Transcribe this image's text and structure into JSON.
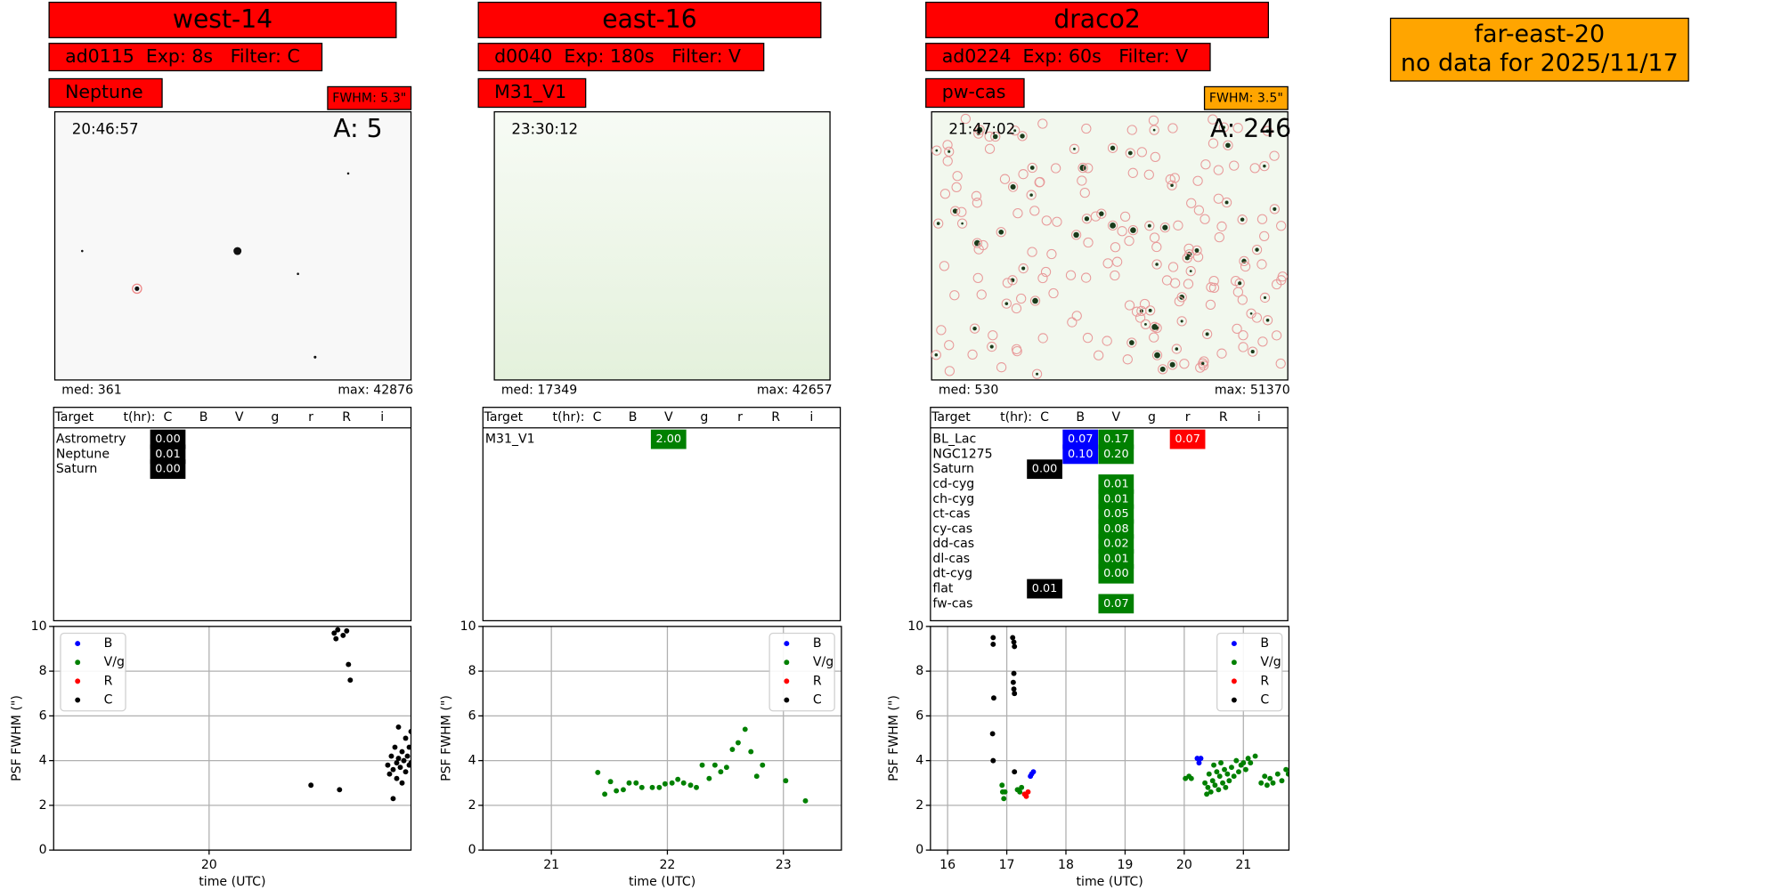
{
  "panels": [
    {
      "title": "west-14",
      "info": "ad0115  Exp: 8s   Filter: C",
      "target": "Neptune",
      "fwhm": "FWHM: 5.3\"",
      "fwhm_color": "#ff0000",
      "time": "20:46:57",
      "count": "A: 5",
      "median": "med: 361",
      "max": "max: 42876",
      "table": {
        "header": [
          "Target",
          "t(hr):"
        ],
        "columns": [
          "C",
          "B",
          "V",
          "g",
          "r",
          "R",
          "i"
        ],
        "rows": [
          {
            "target": "Astrometry",
            "cells": [
              "0.00",
              null,
              null,
              null,
              null,
              null,
              null
            ]
          },
          {
            "target": "Neptune",
            "cells": [
              "0.01",
              null,
              null,
              null,
              null,
              null,
              null
            ]
          },
          {
            "target": "Saturn",
            "cells": [
              "0.00",
              null,
              null,
              null,
              null,
              null,
              null
            ]
          }
        ]
      }
    },
    {
      "title": "east-16",
      "info": "d0040  Exp: 180s   Filter: V",
      "target": "M31_V1",
      "time": "23:30:12",
      "median": "med: 17349",
      "max": "max: 42657",
      "table": {
        "header": [
          "Target",
          "t(hr):"
        ],
        "columns": [
          "C",
          "B",
          "V",
          "g",
          "r",
          "R",
          "i"
        ],
        "rows": [
          {
            "target": "M31_V1",
            "cells": [
              null,
              null,
              "2.00",
              null,
              null,
              null,
              null
            ]
          }
        ]
      }
    },
    {
      "title": "draco2",
      "info": "ad0224  Exp: 60s   Filter: V",
      "target": "pw-cas",
      "fwhm": "FWHM: 3.5\"",
      "fwhm_color": "#ffa500",
      "time": "21:47:02",
      "count": "A: 246",
      "median": "med: 530",
      "max": "max: 51370",
      "table": {
        "header": [
          "Target",
          "t(hr):"
        ],
        "columns": [
          "C",
          "B",
          "V",
          "g",
          "r",
          "R",
          "i"
        ],
        "rows": [
          {
            "target": "BL_Lac",
            "cells": [
              null,
              "0.07",
              "0.17",
              null,
              "0.07",
              null,
              null
            ]
          },
          {
            "target": "NGC1275",
            "cells": [
              null,
              "0.10",
              "0.20",
              null,
              null,
              null,
              null
            ]
          },
          {
            "target": "Saturn",
            "cells": [
              "0.00",
              null,
              null,
              null,
              null,
              null,
              null
            ]
          },
          {
            "target": "cd-cyg",
            "cells": [
              null,
              null,
              "0.01",
              null,
              null,
              null,
              null
            ]
          },
          {
            "target": "ch-cyg",
            "cells": [
              null,
              null,
              "0.01",
              null,
              null,
              null,
              null
            ]
          },
          {
            "target": "ct-cas",
            "cells": [
              null,
              null,
              "0.05",
              null,
              null,
              null,
              null
            ]
          },
          {
            "target": "cy-cas",
            "cells": [
              null,
              null,
              "0.08",
              null,
              null,
              null,
              null
            ]
          },
          {
            "target": "dd-cas",
            "cells": [
              null,
              null,
              "0.02",
              null,
              null,
              null,
              null
            ]
          },
          {
            "target": "dl-cas",
            "cells": [
              null,
              null,
              "0.01",
              null,
              null,
              null,
              null
            ]
          },
          {
            "target": "dt-cyg",
            "cells": [
              null,
              null,
              "0.00",
              null,
              null,
              null,
              null
            ]
          },
          {
            "target": "flat",
            "cells": [
              "0.01",
              null,
              null,
              null,
              null,
              null,
              null
            ]
          },
          {
            "target": "fw-cas",
            "cells": [
              null,
              null,
              "0.07",
              null,
              null,
              null,
              null
            ]
          }
        ]
      }
    }
  ],
  "cell_colors": [
    "#000000",
    "#0000ff",
    "#008000",
    null,
    "#ff0000",
    null,
    null
  ],
  "title_color": "#ff0000",
  "chart_data": [
    {
      "type": "scatter",
      "xlabel": "time (UTC)",
      "ylabel": "PSF FWHM (\")",
      "xlim": [
        19.13,
        21.13
      ],
      "xticks": [
        20
      ],
      "ylim": [
        0,
        10
      ],
      "yticks": [
        0,
        2,
        4,
        6,
        8,
        10
      ],
      "grid": true,
      "legend": "upper left",
      "series": [
        {
          "name": "B",
          "color": "#0000ff",
          "x": [],
          "values": []
        },
        {
          "name": "V/g",
          "color": "#008000",
          "x": [],
          "values": []
        },
        {
          "name": "R",
          "color": "#ff0000",
          "x": [],
          "values": []
        },
        {
          "name": "C",
          "color": "#000000",
          "x": [
            20.57,
            20.73,
            20.7,
            20.72,
            20.75,
            20.77,
            20.71,
            20.78,
            20.79,
            21.0,
            21.01,
            21.02,
            21.03,
            21.03,
            21.04,
            21.05,
            21.05,
            21.06,
            21.06,
            21.07,
            21.08,
            21.08,
            21.09,
            21.1,
            21.1,
            21.11,
            21.12,
            21.12,
            21.13,
            21.13
          ],
          "values": [
            2.9,
            2.7,
            9.7,
            9.85,
            9.6,
            9.8,
            9.45,
            8.3,
            7.6,
            3.8,
            3.4,
            4.2,
            3.6,
            2.3,
            4.6,
            3.9,
            3.2,
            5.5,
            4.1,
            3.7,
            4.4,
            3.0,
            4.0,
            3.5,
            5.0,
            4.2,
            3.8,
            4.6,
            5.3,
            3.9
          ]
        }
      ]
    },
    {
      "type": "scatter",
      "xlabel": "time (UTC)",
      "ylabel": "PSF FWHM (\")",
      "xlim": [
        20.41,
        23.5
      ],
      "xticks": [
        21,
        22,
        23
      ],
      "ylim": [
        0,
        10
      ],
      "yticks": [
        0,
        2,
        4,
        6,
        8,
        10
      ],
      "grid": true,
      "legend": "upper right",
      "series": [
        {
          "name": "B",
          "color": "#0000ff",
          "x": [],
          "values": []
        },
        {
          "name": "V/g",
          "color": "#008000",
          "x": [
            21.4,
            21.46,
            21.51,
            21.56,
            21.62,
            21.67,
            21.73,
            21.78,
            21.87,
            21.93,
            21.98,
            22.04,
            22.09,
            22.14,
            22.2,
            22.25,
            22.3,
            22.36,
            22.41,
            22.46,
            22.51,
            22.56,
            22.61,
            22.67,
            22.72,
            22.77,
            22.82,
            23.02,
            23.19
          ],
          "values": [
            3.47,
            2.5,
            3.06,
            2.65,
            2.7,
            3.0,
            3.0,
            2.8,
            2.8,
            2.8,
            2.96,
            3.0,
            3.16,
            3.0,
            2.9,
            2.8,
            3.8,
            3.2,
            3.8,
            3.5,
            3.7,
            4.5,
            4.8,
            5.4,
            4.4,
            3.3,
            3.8,
            3.1,
            2.2
          ]
        },
        {
          "name": "R",
          "color": "#ff0000",
          "x": [],
          "values": []
        },
        {
          "name": "C",
          "color": "#000000",
          "x": [],
          "values": []
        }
      ]
    },
    {
      "type": "scatter",
      "xlabel": "time (UTC)",
      "ylabel": "PSF FWHM (\")",
      "xlim": [
        15.71,
        21.77
      ],
      "xticks": [
        16,
        17,
        18,
        19,
        20,
        21
      ],
      "ylim": [
        0,
        10
      ],
      "yticks": [
        0,
        2,
        4,
        6,
        8,
        10
      ],
      "grid": true,
      "legend": "upper right",
      "series": [
        {
          "name": "B",
          "color": "#0000ff",
          "x": [
            17.4,
            17.42,
            17.45,
            20.22,
            20.25,
            20.28
          ],
          "values": [
            3.3,
            3.4,
            3.5,
            4.1,
            3.9,
            4.1
          ]
        },
        {
          "name": "V/g",
          "color": "#008000",
          "x": [
            16.92,
            16.93,
            16.95,
            16.97,
            17.18,
            17.22,
            17.25,
            20.02,
            20.08,
            20.12,
            20.35,
            20.38,
            20.4,
            20.42,
            20.45,
            20.48,
            20.5,
            20.52,
            20.55,
            20.58,
            20.6,
            20.62,
            20.65,
            20.68,
            20.7,
            20.73,
            20.76,
            20.8,
            20.84,
            20.88,
            20.92,
            20.96,
            21.0,
            21.04,
            21.08,
            21.12,
            21.2,
            21.3,
            21.36,
            21.4,
            21.45,
            21.5,
            21.58,
            21.65,
            21.72,
            21.76
          ],
          "values": [
            2.9,
            2.6,
            2.3,
            2.6,
            2.7,
            2.6,
            2.8,
            3.2,
            3.3,
            3.2,
            3.0,
            2.5,
            2.8,
            3.4,
            2.6,
            3.1,
            3.8,
            2.9,
            3.5,
            2.7,
            3.3,
            3.9,
            3.0,
            3.6,
            2.8,
            3.4,
            3.1,
            3.7,
            3.3,
            4.0,
            3.5,
            3.8,
            3.9,
            3.6,
            4.1,
            3.9,
            4.2,
            3.0,
            3.3,
            2.9,
            3.2,
            3.0,
            3.4,
            3.1,
            3.6,
            3.4
          ]
        },
        {
          "name": "R",
          "color": "#ff0000",
          "x": [
            17.3,
            17.33,
            17.36
          ],
          "values": [
            2.5,
            2.4,
            2.6
          ]
        },
        {
          "name": "C",
          "color": "#000000",
          "x": [
            16.77,
            16.77,
            16.78,
            16.76,
            16.77,
            17.1,
            17.12,
            17.13,
            17.12,
            17.11,
            17.12,
            17.13,
            17.13
          ],
          "values": [
            9.5,
            9.2,
            6.8,
            5.2,
            4.0,
            9.5,
            9.3,
            9.1,
            7.9,
            7.5,
            7.2,
            7.0,
            3.5
          ]
        }
      ]
    }
  ],
  "notice": {
    "lines": [
      "far-east-20",
      "no data for 2025/11/17"
    ],
    "color": "#ffa500"
  }
}
